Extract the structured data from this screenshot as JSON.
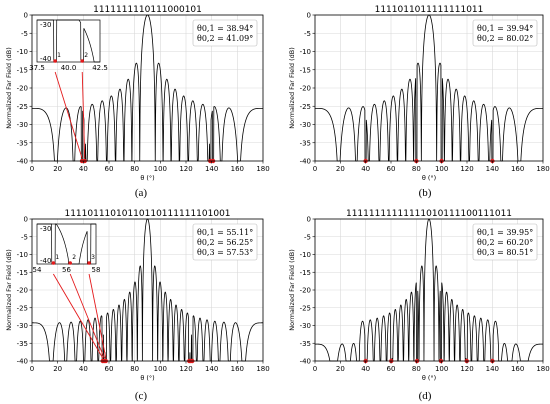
{
  "chart_data": [
    {
      "panel": "(a)",
      "type": "line",
      "title": "1111111110111000101",
      "xlabel": "θ (°)",
      "ylabel": "Normalized Far Field (dB)",
      "xlim": [
        0,
        180
      ],
      "ylim": [
        -40,
        0
      ],
      "xticks": [
        0,
        20,
        40,
        60,
        80,
        100,
        120,
        140,
        160,
        180
      ],
      "yticks": [
        -40,
        -35,
        -30,
        -25,
        -20,
        -15,
        -10,
        -5,
        0
      ],
      "grid": true,
      "pattern": {
        "N": 19,
        "offsets_deg": [
          -50.6,
          -49.7,
          -48.5,
          49.7,
          50.9
        ],
        "envelope_dip": 0
      },
      "markers": [
        38.94,
        41.09,
        138.9,
        141.1
      ],
      "legend": [
        "θ0,1 = 38.94°",
        "θ0,2 = 41.09°"
      ],
      "legend_loc": "top-right",
      "inset": {
        "xlim": [
          37.5,
          42.5
        ],
        "ylim": [
          -40,
          -30
        ],
        "xticks": [
          "37.5",
          "40.0",
          "42.5"
        ],
        "yticks": [
          "-30",
          "-40"
        ],
        "point_labels": [
          "1",
          "2"
        ]
      },
      "color": "#000000",
      "marker_color": "#e41a1c"
    },
    {
      "panel": "(b)",
      "type": "line",
      "title": "1111011011111111011",
      "xlabel": "θ (°)",
      "ylabel": "Normalized Far Field (dB)",
      "xlim": [
        0,
        180
      ],
      "ylim": [
        -40,
        0
      ],
      "xticks": [
        0,
        20,
        40,
        60,
        80,
        100,
        120,
        140,
        160,
        180
      ],
      "yticks": [
        -40,
        -35,
        -30,
        -25,
        -20,
        -15,
        -10,
        -5,
        0
      ],
      "grid": true,
      "pattern": {
        "N": 19,
        "offsets_deg": [
          -50.1,
          -9.9,
          9.9,
          50.1
        ],
        "envelope_dip": 0
      },
      "markers": [
        39.94,
        80.02,
        99.98,
        140.06
      ],
      "legend": [
        "θ0,1 = 39.94°",
        "θ0,2 = 80.02°"
      ],
      "legend_loc": "top-right",
      "color": "#000000",
      "marker_color": "#e41a1c"
    },
    {
      "panel": "(c)",
      "type": "line",
      "title": "11110111010110110111111101001",
      "xlabel": "θ (°)",
      "ylabel": "Normalized Far Field (dB)",
      "xlim": [
        0,
        180
      ],
      "ylim": [
        -40,
        0
      ],
      "xticks": [
        0,
        20,
        40,
        60,
        80,
        100,
        120,
        140,
        160,
        180
      ],
      "yticks": [
        -40,
        -35,
        -30,
        -25,
        -20,
        -15,
        -10,
        -5,
        0
      ],
      "grid": true,
      "pattern": {
        "N": 29,
        "offsets_deg": [
          -34.9,
          -33.7,
          -32.5,
          32.4,
          33.6,
          34.8
        ],
        "envelope_dip": 0
      },
      "markers": [
        55.11,
        56.25,
        57.53,
        122.5,
        123.7,
        124.9
      ],
      "legend": [
        "θ0,1 = 55.11°",
        "θ0,2 = 56.25°",
        "θ0,3 = 57.53°"
      ],
      "legend_loc": "top-right",
      "inset": {
        "xlim": [
          54,
          58
        ],
        "ylim": [
          -40,
          -30
        ],
        "xticks": [
          "54",
          "56",
          "58"
        ],
        "yticks": [
          "-30",
          "-40"
        ],
        "point_labels": [
          "1",
          "2",
          "3"
        ]
      },
      "color": "#000000",
      "marker_color": "#e41a1c"
    },
    {
      "panel": "(d)",
      "type": "line",
      "title": "11111111111111010111100111011",
      "xlabel": "θ (°)",
      "ylabel": "Normalized Far Field (dB)",
      "xlim": [
        0,
        180
      ],
      "ylim": [
        -40,
        0
      ],
      "xticks": [
        0,
        20,
        40,
        60,
        80,
        100,
        120,
        140,
        160,
        180
      ],
      "yticks": [
        -40,
        -35,
        -30,
        -25,
        -20,
        -15,
        -10,
        -5,
        0
      ],
      "grid": true,
      "pattern": {
        "N": 29,
        "offsets_deg": [
          -50.05,
          -29.8,
          -9.5,
          9.5,
          29.8,
          50.05
        ],
        "envelope_dip": 1
      },
      "markers": [
        39.95,
        60.2,
        80.51,
        99.49,
        119.8,
        140.05
      ],
      "legend": [
        "θ0,1 = 39.95°",
        "θ0,2 = 60.20°",
        "θ0,3 = 80.51°"
      ],
      "legend_loc": "top-right",
      "color": "#000000",
      "marker_color": "#e41a1c"
    }
  ]
}
